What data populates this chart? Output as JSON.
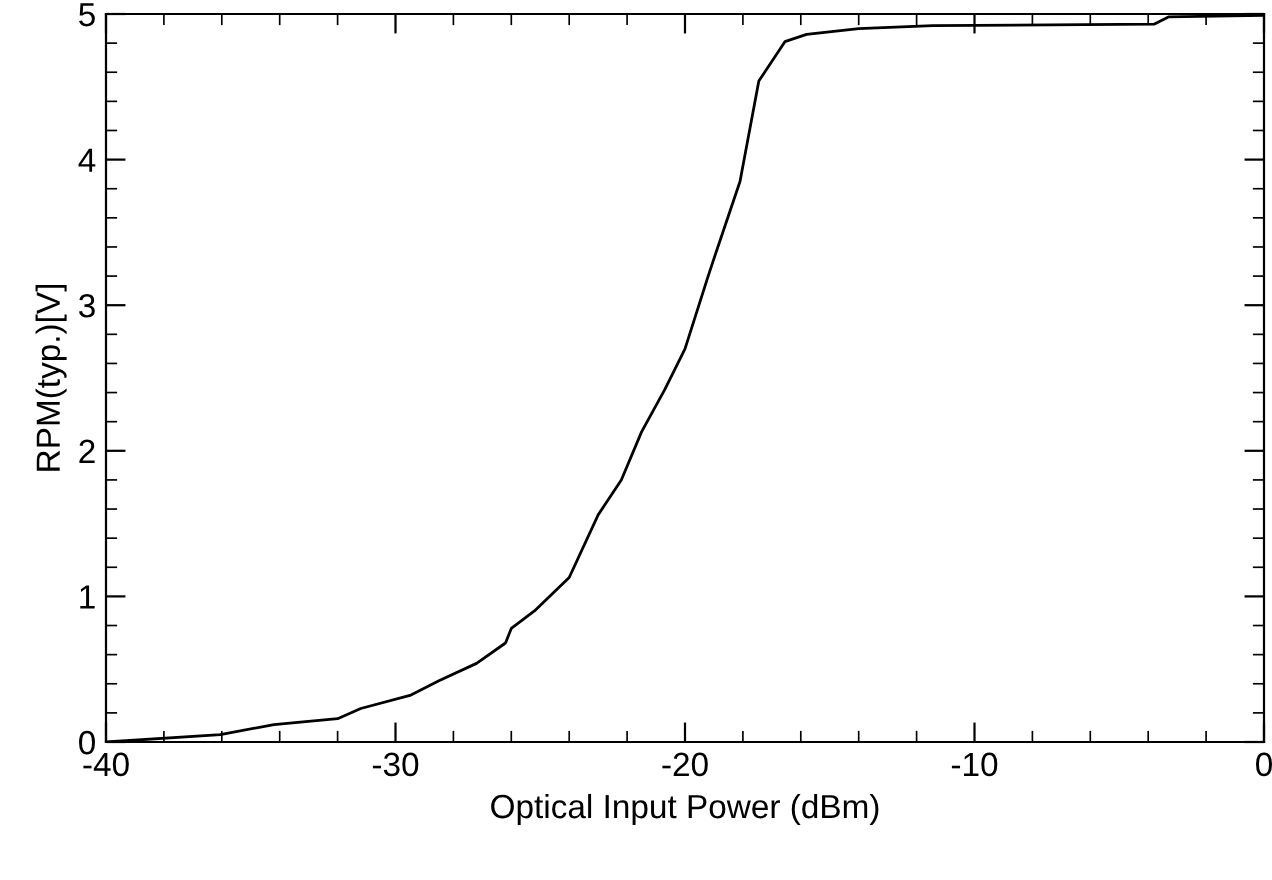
{
  "chart_data": {
    "type": "line",
    "xlabel": "Optical Input Power (dBm)",
    "ylabel": "RPM(typ.)[V]",
    "xlim": [
      -40,
      0
    ],
    "ylim": [
      0,
      5
    ],
    "xticks": [
      -40,
      -30,
      -20,
      -10,
      0
    ],
    "yticks": [
      0,
      1,
      2,
      3,
      4,
      5
    ],
    "grid": false,
    "marker": "none",
    "line_style": "solid",
    "series": [
      {
        "color": "#000000",
        "x": [
          -40,
          -36.05,
          -34.2,
          -32.0,
          -31.2,
          -29.5,
          -28.5,
          -27.2,
          -26.2,
          -26.0,
          -25.2,
          -24.0,
          -23.0,
          -22.2,
          -21.5,
          -20.7,
          -20.0,
          -19.2,
          -19.0,
          -18.1,
          -17.45,
          -16.55,
          -15.8,
          -14.0,
          -11.45,
          -3.8,
          -3.3,
          0
        ],
        "values": [
          0,
          0.05,
          0.12,
          0.16,
          0.23,
          0.32,
          0.42,
          0.54,
          0.68,
          0.78,
          0.9,
          1.13,
          1.56,
          1.8,
          2.13,
          2.42,
          2.7,
          3.2,
          3.32,
          3.85,
          4.54,
          4.81,
          4.86,
          4.9,
          4.92,
          4.93,
          4.98,
          4.99
        ]
      }
    ]
  }
}
